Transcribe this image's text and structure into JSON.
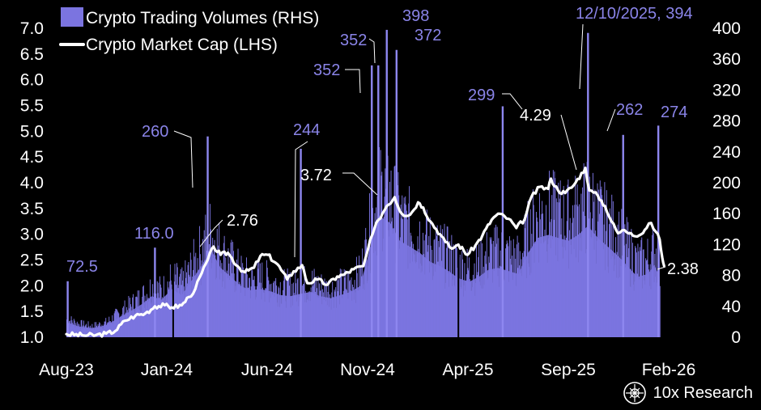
{
  "chart_data": {
    "type": "bar+line",
    "legend": [
      {
        "name": "Crypto Trading Volumes (RHS)",
        "kind": "bar",
        "color": "#7b74e0"
      },
      {
        "name": "Crypto Market Cap (LHS)",
        "kind": "line",
        "color": "#ffffff"
      }
    ],
    "legend_position": "top-left",
    "grid": false,
    "x_axis": {
      "ticks": [
        "Aug-23",
        "Jan-24",
        "Jun-24",
        "Nov-24",
        "Apr-25",
        "Sep-25",
        "Feb-26"
      ],
      "range": [
        "2023-08-01",
        "2026-02-01"
      ]
    },
    "y_left": {
      "ticks": [
        "1.0",
        "1.5",
        "2.0",
        "2.5",
        "3.0",
        "3.5",
        "4.0",
        "4.5",
        "5.0",
        "5.5",
        "6.0",
        "6.5",
        "7.0"
      ],
      "range": [
        1.0,
        7.0
      ]
    },
    "y_right": {
      "ticks": [
        "0",
        "40",
        "80",
        "120",
        "160",
        "200",
        "240",
        "280",
        "320",
        "360",
        "400"
      ],
      "range": [
        0,
        400
      ]
    },
    "colors": {
      "bars": "#7b74e0",
      "bar_spikes": "#8e87f0",
      "line": "#ffffff",
      "volume_labels": "#8a84e8",
      "marketcap_labels": "#ffffff",
      "axis_text": "#ffffff",
      "leader_lines": "#ffffff"
    },
    "series": [
      {
        "name": "Crypto Trading Volumes (RHS)",
        "axis": "right",
        "kind": "bar",
        "points": [
          [
            "2023-08-01",
            25
          ],
          [
            "2023-08-20",
            18
          ],
          [
            "2023-09-10",
            15
          ],
          [
            "2023-10-01",
            20
          ],
          [
            "2023-10-20",
            32
          ],
          [
            "2023-11-10",
            45
          ],
          [
            "2023-11-25",
            55
          ],
          [
            "2023-12-10",
            68
          ],
          [
            "2023-12-25",
            62
          ],
          [
            "2024-01-10",
            80
          ],
          [
            "2024-01-25",
            70
          ],
          [
            "2024-02-10",
            95
          ],
          [
            "2024-02-25",
            120
          ],
          [
            "2024-03-10",
            145
          ],
          [
            "2024-03-25",
            115
          ],
          [
            "2024-04-10",
            100
          ],
          [
            "2024-04-25",
            85
          ],
          [
            "2024-05-10",
            78
          ],
          [
            "2024-05-25",
            80
          ],
          [
            "2024-06-10",
            76
          ],
          [
            "2024-06-25",
            70
          ],
          [
            "2024-07-10",
            68
          ],
          [
            "2024-07-25",
            72
          ],
          [
            "2024-08-10",
            75
          ],
          [
            "2024-08-25",
            68
          ],
          [
            "2024-09-10",
            65
          ],
          [
            "2024-09-25",
            70
          ],
          [
            "2024-10-10",
            75
          ],
          [
            "2024-10-25",
            85
          ],
          [
            "2024-11-05",
            130
          ],
          [
            "2024-11-15",
            175
          ],
          [
            "2024-11-25",
            200
          ],
          [
            "2024-12-10",
            190
          ],
          [
            "2024-12-25",
            160
          ],
          [
            "2025-01-10",
            150
          ],
          [
            "2025-01-25",
            140
          ],
          [
            "2025-02-10",
            125
          ],
          [
            "2025-02-25",
            118
          ],
          [
            "2025-03-10",
            110
          ],
          [
            "2025-03-25",
            98
          ],
          [
            "2025-04-10",
            92
          ],
          [
            "2025-04-25",
            100
          ],
          [
            "2025-05-10",
            112
          ],
          [
            "2025-05-25",
            115
          ],
          [
            "2025-06-10",
            110
          ],
          [
            "2025-06-25",
            105
          ],
          [
            "2025-07-10",
            140
          ],
          [
            "2025-07-25",
            165
          ],
          [
            "2025-08-10",
            170
          ],
          [
            "2025-08-25",
            165
          ],
          [
            "2025-09-10",
            160
          ],
          [
            "2025-09-25",
            170
          ],
          [
            "2025-10-10",
            185
          ],
          [
            "2025-10-25",
            165
          ],
          [
            "2025-11-10",
            150
          ],
          [
            "2025-11-25",
            135
          ],
          [
            "2025-12-10",
            118
          ],
          [
            "2025-12-25",
            100
          ],
          [
            "2026-01-10",
            105
          ],
          [
            "2026-01-20",
            120
          ],
          [
            "2026-01-28",
            100
          ]
        ],
        "peaks": [
          [
            "2023-08-03",
            72.5
          ],
          [
            "2023-12-15",
            116.0
          ],
          [
            "2024-03-05",
            260
          ],
          [
            "2024-07-26",
            244
          ],
          [
            "2024-11-12",
            352
          ],
          [
            "2024-11-22",
            352
          ],
          [
            "2024-12-05",
            398
          ],
          [
            "2024-12-20",
            372
          ],
          [
            "2025-06-01",
            299
          ],
          [
            "2025-10-10",
            394
          ],
          [
            "2025-12-03",
            262
          ],
          [
            "2026-01-26",
            274
          ]
        ],
        "lows": [
          [
            "2024-01-12",
            0
          ],
          [
            "2025-03-25",
            0
          ]
        ]
      },
      {
        "name": "Crypto Market Cap (LHS)",
        "axis": "left",
        "kind": "line",
        "points": [
          [
            "2023-08-01",
            1.06
          ],
          [
            "2023-08-25",
            1.04
          ],
          [
            "2023-09-15",
            1.04
          ],
          [
            "2023-10-01",
            1.07
          ],
          [
            "2023-10-15",
            1.12
          ],
          [
            "2023-10-30",
            1.32
          ],
          [
            "2023-11-15",
            1.42
          ],
          [
            "2023-11-30",
            1.46
          ],
          [
            "2023-12-15",
            1.6
          ],
          [
            "2023-12-30",
            1.62
          ],
          [
            "2024-01-10",
            1.58
          ],
          [
            "2024-01-25",
            1.62
          ],
          [
            "2024-02-05",
            1.78
          ],
          [
            "2024-02-15",
            1.94
          ],
          [
            "2024-02-25",
            2.25
          ],
          [
            "2024-03-05",
            2.5
          ],
          [
            "2024-03-14",
            2.76
          ],
          [
            "2024-03-25",
            2.6
          ],
          [
            "2024-04-05",
            2.64
          ],
          [
            "2024-04-20",
            2.38
          ],
          [
            "2024-05-01",
            2.26
          ],
          [
            "2024-05-15",
            2.35
          ],
          [
            "2024-05-25",
            2.58
          ],
          [
            "2024-06-05",
            2.6
          ],
          [
            "2024-06-20",
            2.42
          ],
          [
            "2024-07-05",
            2.12
          ],
          [
            "2024-07-15",
            2.28
          ],
          [
            "2024-07-28",
            2.4
          ],
          [
            "2024-08-05",
            2.05
          ],
          [
            "2024-08-20",
            2.12
          ],
          [
            "2024-09-05",
            2.02
          ],
          [
            "2024-09-20",
            2.18
          ],
          [
            "2024-10-01",
            2.22
          ],
          [
            "2024-10-15",
            2.32
          ],
          [
            "2024-10-30",
            2.38
          ],
          [
            "2024-11-06",
            2.7
          ],
          [
            "2024-11-13",
            3.0
          ],
          [
            "2024-11-22",
            3.28
          ],
          [
            "2024-12-05",
            3.55
          ],
          [
            "2024-12-17",
            3.72
          ],
          [
            "2024-12-28",
            3.4
          ],
          [
            "2025-01-10",
            3.38
          ],
          [
            "2025-01-22",
            3.62
          ],
          [
            "2025-01-30",
            3.52
          ],
          [
            "2025-02-10",
            3.25
          ],
          [
            "2025-02-25",
            3.0
          ],
          [
            "2025-03-05",
            2.85
          ],
          [
            "2025-03-15",
            2.72
          ],
          [
            "2025-03-25",
            2.8
          ],
          [
            "2025-04-08",
            2.6
          ],
          [
            "2025-04-20",
            2.78
          ],
          [
            "2025-05-01",
            2.98
          ],
          [
            "2025-05-15",
            3.28
          ],
          [
            "2025-05-25",
            3.4
          ],
          [
            "2025-06-10",
            3.3
          ],
          [
            "2025-06-22",
            3.12
          ],
          [
            "2025-07-05",
            3.3
          ],
          [
            "2025-07-15",
            3.72
          ],
          [
            "2025-07-28",
            3.92
          ],
          [
            "2025-08-10",
            3.88
          ],
          [
            "2025-08-14",
            4.08
          ],
          [
            "2025-08-25",
            3.85
          ],
          [
            "2025-09-05",
            3.8
          ],
          [
            "2025-09-18",
            3.95
          ],
          [
            "2025-10-06",
            4.29
          ],
          [
            "2025-10-12",
            3.85
          ],
          [
            "2025-10-25",
            3.75
          ],
          [
            "2025-11-05",
            3.55
          ],
          [
            "2025-11-15",
            3.25
          ],
          [
            "2025-11-25",
            3.02
          ],
          [
            "2025-12-05",
            3.08
          ],
          [
            "2025-12-15",
            3.02
          ],
          [
            "2025-12-28",
            2.98
          ],
          [
            "2026-01-08",
            3.12
          ],
          [
            "2026-01-15",
            3.22
          ],
          [
            "2026-01-22",
            3.05
          ],
          [
            "2026-01-28",
            2.9
          ],
          [
            "2026-02-01",
            2.55
          ],
          [
            "2026-02-04",
            2.38
          ]
        ]
      }
    ],
    "annotations": [
      {
        "text": "72.5",
        "series": "volume",
        "anchor": [
          "2023-08-03",
          72.5
        ]
      },
      {
        "text": "116.0",
        "series": "volume",
        "anchor": [
          "2023-12-15",
          116.0
        ]
      },
      {
        "text": "260",
        "series": "volume",
        "anchor": [
          "2024-03-05",
          260
        ]
      },
      {
        "text": "244",
        "series": "volume",
        "anchor": [
          "2024-07-26",
          244
        ]
      },
      {
        "text": "352",
        "series": "volume",
        "anchor": [
          "2024-11-12",
          352
        ]
      },
      {
        "text": "352",
        "series": "volume",
        "anchor": [
          "2024-11-22",
          352
        ]
      },
      {
        "text": "398",
        "series": "volume",
        "anchor": [
          "2024-12-05",
          398
        ]
      },
      {
        "text": "372",
        "series": "volume",
        "anchor": [
          "2024-12-20",
          372
        ]
      },
      {
        "text": "299",
        "series": "volume",
        "anchor": [
          "2025-06-01",
          299
        ]
      },
      {
        "text": "12/10/2025, 394",
        "series": "volume",
        "anchor": [
          "2025-10-10",
          394
        ]
      },
      {
        "text": "262",
        "series": "volume",
        "anchor": [
          "2025-12-03",
          262
        ]
      },
      {
        "text": "274",
        "series": "volume",
        "anchor": [
          "2026-01-26",
          274
        ]
      },
      {
        "text": "2.76",
        "series": "marketcap",
        "anchor": [
          "2024-03-14",
          2.76
        ]
      },
      {
        "text": "3.72",
        "series": "marketcap",
        "anchor": [
          "2024-12-17",
          3.72
        ]
      },
      {
        "text": "4.29",
        "series": "marketcap",
        "anchor": [
          "2025-10-06",
          4.29
        ]
      },
      {
        "text": "2.38",
        "series": "marketcap",
        "anchor": [
          "2026-02-04",
          2.38
        ]
      }
    ]
  },
  "watermark": {
    "text": "10x Research",
    "icon": "10x-research-logo-icon"
  }
}
